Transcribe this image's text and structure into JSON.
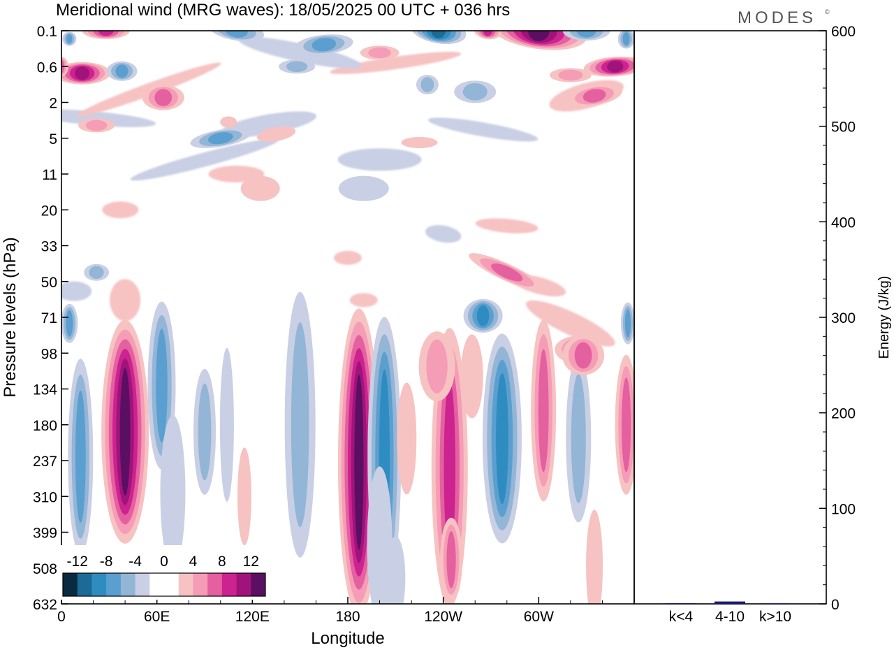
{
  "title": "Meridional wind (MRG waves):  18/05/2025  00 UTC  + 036 hrs",
  "brand": "MODES",
  "brand_mark": "©",
  "chart_data": [
    {
      "type": "heatmap",
      "title": "Meridional wind (MRG waves):  18/05/2025  00 UTC  + 036 hrs",
      "xlabel": "Longitude",
      "ylabel": "Pressure levels (hPa)",
      "x_ticks": [
        "0",
        "60E",
        "120E",
        "180",
        "120W",
        "60W"
      ],
      "x_tick_values": [
        0,
        60,
        120,
        180,
        240,
        300
      ],
      "xlim": [
        0,
        360
      ],
      "y_ticks": [
        "0.1",
        "0.6",
        "2",
        "5",
        "11",
        "20",
        "33",
        "50",
        "71",
        "98",
        "134",
        "180",
        "237",
        "310",
        "399",
        "508",
        "632"
      ],
      "colorbar": {
        "labels": [
          "-12",
          "-8",
          "-4",
          "0",
          "4",
          "8",
          "12"
        ],
        "levels": [
          -14,
          -12,
          -10,
          -8,
          -6,
          -4,
          -2,
          2,
          4,
          6,
          8,
          10,
          12,
          14
        ],
        "colors": [
          "#0a2a3f",
          "#1c6b96",
          "#2f8cc0",
          "#5a9fcf",
          "#93b5d6",
          "#c9cfe4",
          "#ffffff",
          "#ffffff",
          "#f7c2c2",
          "#f59cb6",
          "#e4609f",
          "#cc2390",
          "#a0137b",
          "#5a0f63"
        ]
      },
      "features": [
        {
          "lon": 12,
          "lev": 210,
          "value": -7,
          "sign": "negative"
        },
        {
          "lon": 40,
          "lev": 190,
          "value": 12,
          "sign": "positive"
        },
        {
          "lon": 63,
          "lev": 140,
          "value": -5,
          "sign": "negative"
        },
        {
          "lon": 90,
          "lev": 190,
          "value": -3,
          "sign": "negative"
        },
        {
          "lon": 187,
          "lev": 260,
          "value": 13,
          "sign": "positive"
        },
        {
          "lon": 203,
          "lev": 230,
          "value": -9,
          "sign": "negative"
        },
        {
          "lon": 244,
          "lev": 260,
          "value": 7,
          "sign": "positive"
        },
        {
          "lon": 277,
          "lev": 200,
          "value": -8,
          "sign": "negative"
        },
        {
          "lon": 303,
          "lev": 150,
          "value": 5,
          "sign": "positive"
        },
        {
          "lon": 355,
          "lev": 180,
          "value": 7,
          "sign": "positive"
        },
        {
          "lon": 300,
          "lev": 0.1,
          "value": 14,
          "sign": "positive"
        },
        {
          "lon": 237,
          "lev": 0.1,
          "value": -13,
          "sign": "negative"
        },
        {
          "lon": 348,
          "lev": 0.6,
          "value": 12,
          "sign": "positive"
        },
        {
          "lon": 13,
          "lev": 0.7,
          "value": 11,
          "sign": "positive"
        }
      ]
    },
    {
      "type": "bar",
      "categories": [
        "k<4",
        "4-10",
        "k>10"
      ],
      "values": [
        0.8,
        2.5,
        0.6
      ],
      "ylabel": "Energy (J/kg)",
      "ylim": [
        0,
        600
      ],
      "y_ticks": [
        "0",
        "100",
        "200",
        "300",
        "400",
        "500",
        "600"
      ],
      "bar_color": "#1a1a6e"
    }
  ]
}
